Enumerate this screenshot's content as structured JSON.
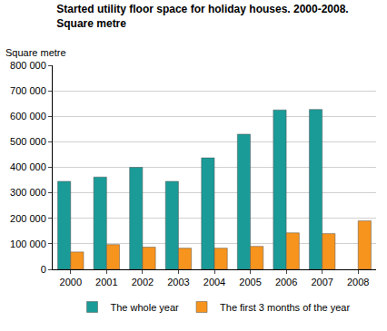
{
  "chart_data": {
    "type": "bar",
    "title": "Started utility floor space for holiday houses. 2000-2008.",
    "subtitle": "Square metre",
    "ylabel": "Square metre",
    "categories": [
      "2000",
      "2001",
      "2002",
      "2003",
      "2004",
      "2005",
      "2006",
      "2007",
      "2008"
    ],
    "series": [
      {
        "name": "The whole year",
        "color": "#1a9b98",
        "values": [
          345000,
          362000,
          400000,
          345000,
          437000,
          530000,
          625000,
          627000,
          null
        ]
      },
      {
        "name": "The first 3 months of the year",
        "color": "#f7941d",
        "values": [
          68000,
          97000,
          87000,
          83000,
          83000,
          90000,
          143000,
          140000,
          190000
        ]
      }
    ],
    "ylim": [
      0,
      800000
    ],
    "yticks": [
      0,
      {
        "value": 100000,
        "label": "100 000"
      },
      {
        "value": 200000,
        "label": "200 000"
      },
      {
        "value": 300000,
        "label": "300 000"
      },
      {
        "value": 400000,
        "label": "400 000"
      },
      {
        "value": 500000,
        "label": "500 000"
      },
      {
        "value": 600000,
        "label": "600 000"
      },
      {
        "value": 700000,
        "label": "700 000"
      },
      {
        "value": 800000,
        "label": "800 000"
      }
    ],
    "grid": true,
    "legend": "bottom"
  }
}
